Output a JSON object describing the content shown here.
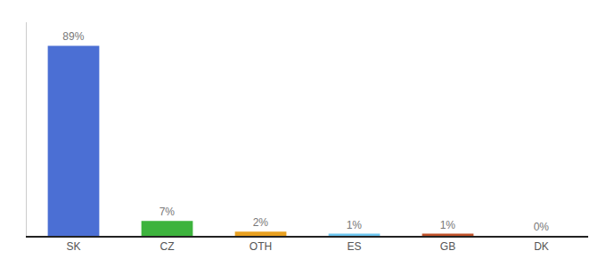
{
  "chart_data": {
    "type": "bar",
    "categories": [
      "SK",
      "CZ",
      "OTH",
      "ES",
      "GB",
      "DK"
    ],
    "values": [
      89,
      7,
      2,
      1,
      1,
      0
    ],
    "value_labels": [
      "89%",
      "7%",
      "2%",
      "1%",
      "1%",
      "0%"
    ],
    "colors": [
      "#4b6fd4",
      "#3db33d",
      "#e8a020",
      "#6ec6f0",
      "#c0522a",
      "#9999cc"
    ],
    "ylim": [
      0,
      100
    ],
    "data_labels": true,
    "tick_labels": "x",
    "grid": false
  }
}
